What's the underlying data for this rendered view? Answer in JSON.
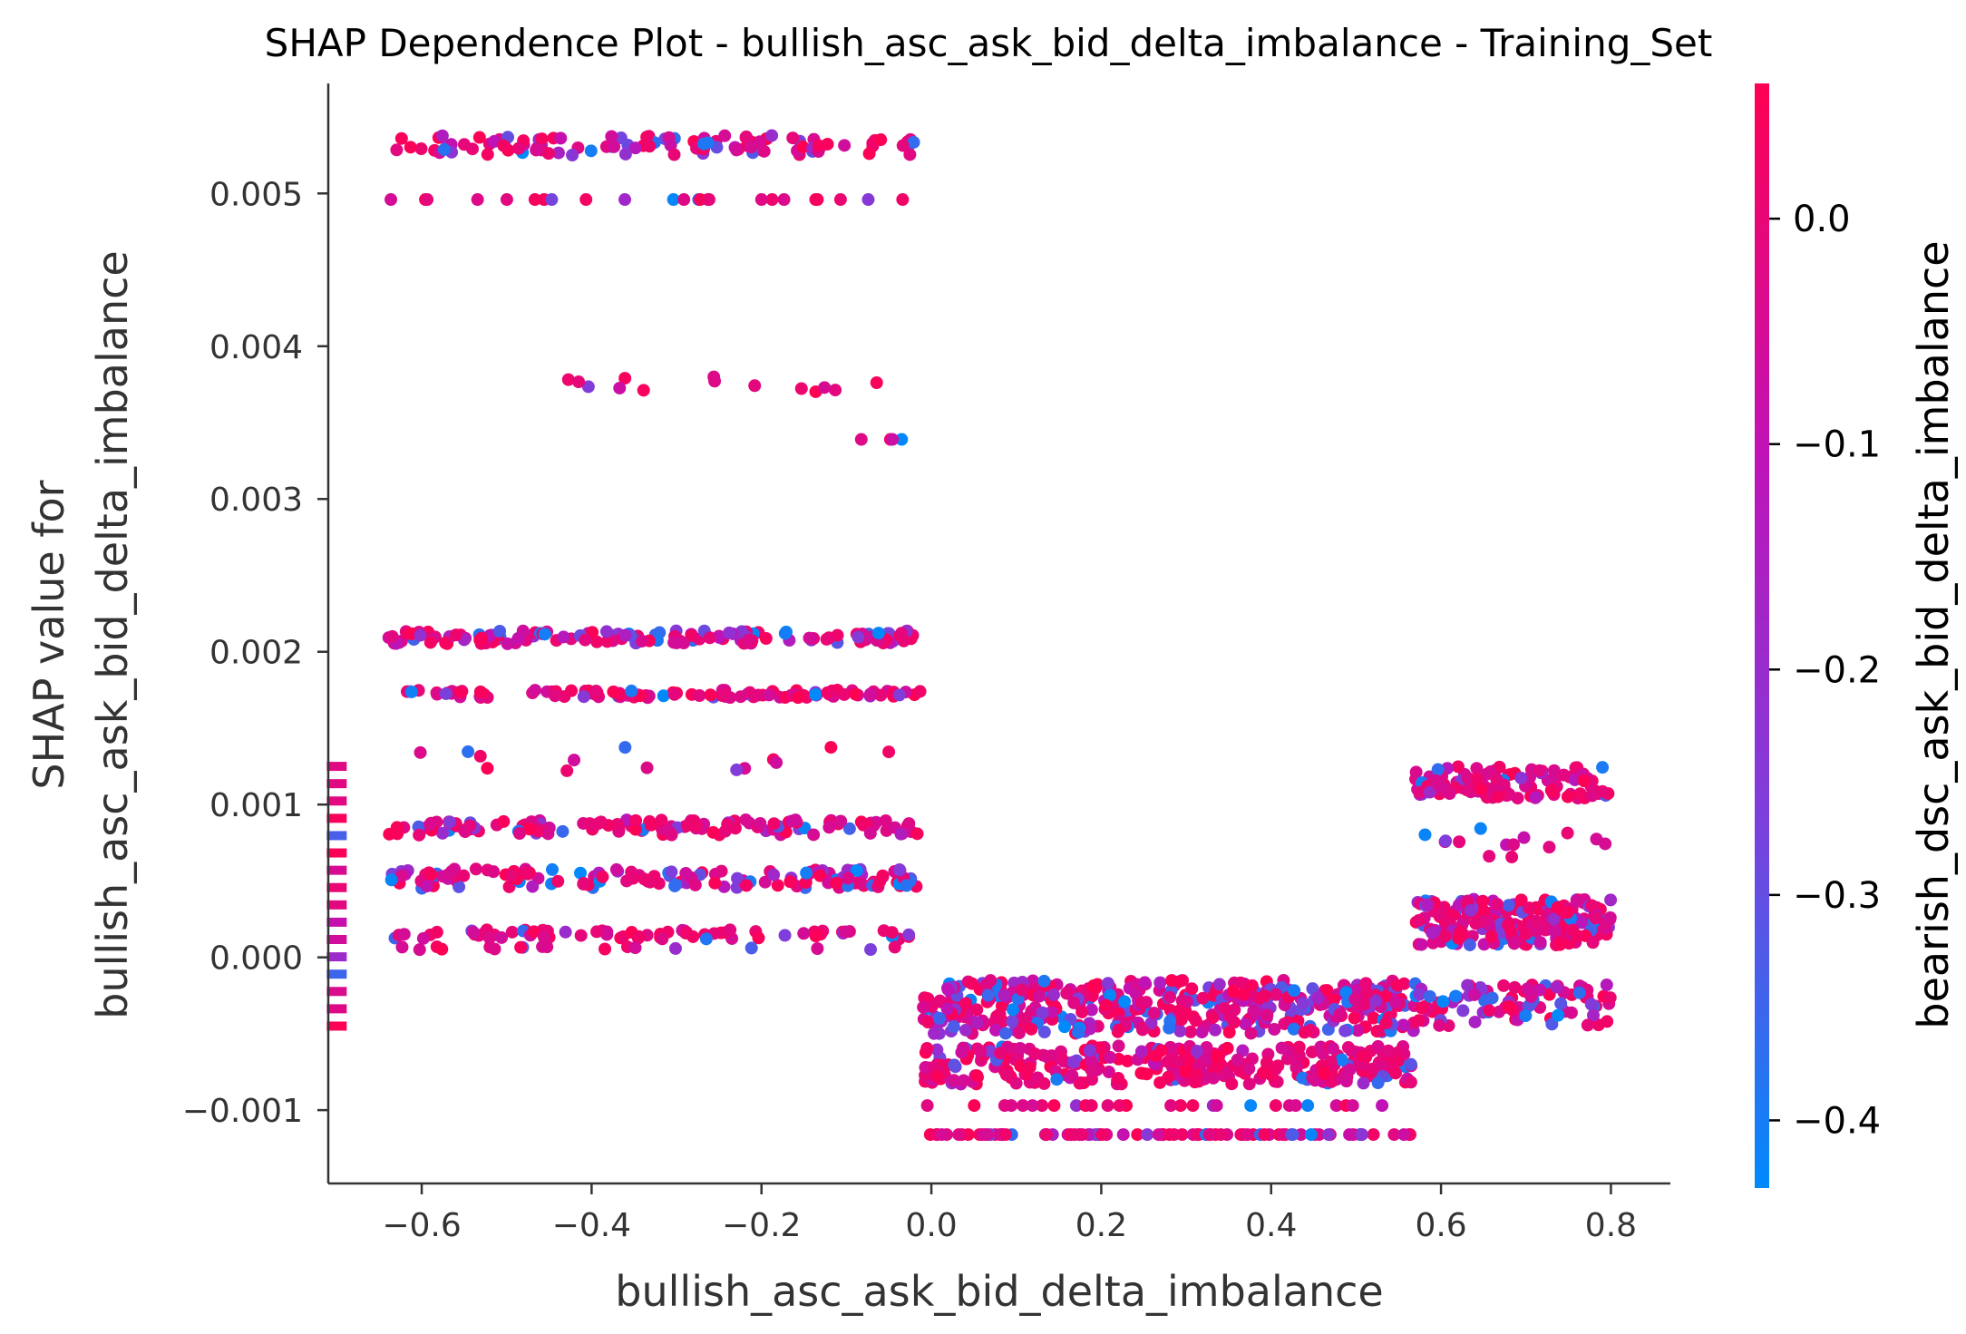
{
  "chart_data": {
    "type": "scatter",
    "title": "SHAP Dependence Plot - bullish_asc_ask_bid_delta_imbalance - Training_Set",
    "xlabel": "bullish_asc_ask_bid_delta_imbalance",
    "ylabel_line1": "SHAP value for",
    "ylabel_line2": "bullish_asc_ask_bid_delta_imbalance",
    "xlim": [
      -0.71,
      0.87
    ],
    "ylim": [
      -0.00148,
      0.00572
    ],
    "x_ticks": [
      -0.6,
      -0.4,
      -0.2,
      0.0,
      0.2,
      0.4,
      0.6,
      0.8
    ],
    "x_tick_labels": [
      "−0.6",
      "−0.4",
      "−0.2",
      "0.0",
      "0.2",
      "0.4",
      "0.6",
      "0.8"
    ],
    "y_ticks": [
      -0.001,
      0.0,
      0.001,
      0.002,
      0.003,
      0.004,
      0.005
    ],
    "y_tick_labels": [
      "−0.001",
      "0.000",
      "0.001",
      "0.002",
      "0.003",
      "0.004",
      "0.005"
    ],
    "grid": false,
    "colorbar": {
      "label": "bearish_dsc_ask_bid_delta_imbalance",
      "range": [
        -0.43,
        0.06
      ],
      "ticks": [
        0.0,
        -0.1,
        -0.2,
        -0.3,
        -0.4
      ],
      "tick_labels": [
        "0.0",
        "−0.1",
        "−0.2",
        "−0.3",
        "−0.4"
      ],
      "colors": [
        "#008afb",
        "#7d3fdc",
        "#c012b6",
        "#ff0052"
      ]
    },
    "clusters": [
      {
        "x": [
          -0.64,
          -0.01
        ],
        "y": [
          0.00525,
          0.00538
        ],
        "n": 110,
        "color_bias": 0.55
      },
      {
        "x": [
          -0.64,
          -0.01
        ],
        "y": [
          0.00496,
          0.00496
        ],
        "n": 24,
        "color_bias": 0.8
      },
      {
        "x": [
          -0.5,
          -0.01
        ],
        "y": [
          0.0037,
          0.0038
        ],
        "n": 14,
        "color_bias": 0.7
      },
      {
        "x": [
          -0.48,
          -0.03
        ],
        "y": [
          0.00339,
          0.00339
        ],
        "n": 4,
        "color_bias": 0.7
      },
      {
        "x": [
          -0.64,
          -0.01
        ],
        "y": [
          0.00205,
          0.00214
        ],
        "n": 140,
        "color_bias": 0.5
      },
      {
        "x": [
          -0.64,
          -0.01
        ],
        "y": [
          0.0017,
          0.00175
        ],
        "n": 110,
        "color_bias": 0.85
      },
      {
        "x": [
          -0.64,
          -0.01
        ],
        "y": [
          0.00122,
          0.00138
        ],
        "n": 14,
        "color_bias": 0.75
      },
      {
        "x": [
          -0.64,
          -0.01
        ],
        "y": [
          0.0008,
          0.0009
        ],
        "n": 130,
        "color_bias": 0.6
      },
      {
        "x": [
          -0.64,
          -0.01
        ],
        "y": [
          0.00045,
          0.00058
        ],
        "n": 140,
        "color_bias": 0.55
      },
      {
        "x": [
          -0.64,
          -0.01
        ],
        "y": [
          0.00012,
          0.00018
        ],
        "n": 70,
        "color_bias": 0.8
      },
      {
        "x": [
          -0.64,
          -0.01
        ],
        "y": [
          5e-05,
          7e-05
        ],
        "n": 18,
        "color_bias": 0.8
      },
      {
        "x": [
          -0.01,
          0.57
        ],
        "y": [
          -0.0005,
          -0.00015
        ],
        "n": 420,
        "color_bias": 0.4
      },
      {
        "x": [
          -0.01,
          0.57
        ],
        "y": [
          -0.00083,
          -0.00058
        ],
        "n": 320,
        "color_bias": 0.8
      },
      {
        "x": [
          -0.01,
          0.57
        ],
        "y": [
          -0.00097,
          -0.00097
        ],
        "n": 28,
        "color_bias": 0.8
      },
      {
        "x": [
          -0.01,
          0.57
        ],
        "y": [
          -0.00116,
          -0.00116
        ],
        "n": 90,
        "color_bias": 0.7
      },
      {
        "x": [
          0.57,
          0.8
        ],
        "y": [
          0.00104,
          0.00125
        ],
        "n": 120,
        "color_bias": 0.75
      },
      {
        "x": [
          0.57,
          0.8
        ],
        "y": [
          0.00065,
          0.00085
        ],
        "n": 14,
        "color_bias": 0.8
      },
      {
        "x": [
          0.57,
          0.8
        ],
        "y": [
          8e-05,
          0.00038
        ],
        "n": 220,
        "color_bias": 0.5
      },
      {
        "x": [
          0.57,
          0.8
        ],
        "y": [
          -0.00045,
          -0.00018
        ],
        "n": 90,
        "color_bias": 0.45
      },
      {
        "x": [
          -0.7,
          -0.7
        ],
        "y": [
          -0.00045,
          0.00125
        ],
        "n": 16,
        "color_bias": 0.6,
        "marker": "dash"
      }
    ]
  }
}
